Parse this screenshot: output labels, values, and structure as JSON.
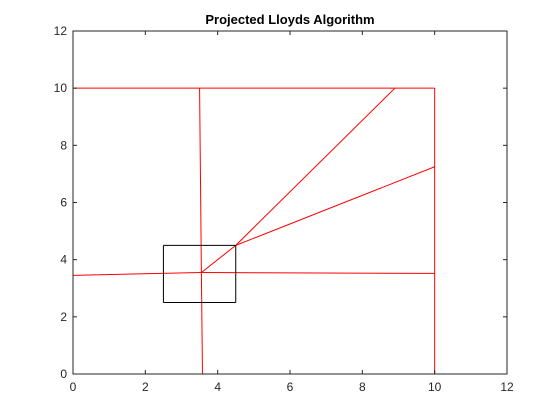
{
  "chart_data": {
    "type": "line",
    "title": "Projected Lloyds Algorithm",
    "xlabel": "",
    "ylabel": "",
    "xlim": [
      0,
      12
    ],
    "ylim": [
      0,
      12
    ],
    "xticks": [
      0,
      2,
      4,
      6,
      8,
      10,
      12
    ],
    "yticks": [
      0,
      2,
      4,
      6,
      8,
      10,
      12
    ],
    "grid": false,
    "box": true,
    "series": [
      {
        "color": "#ff0000",
        "segments": [
          [
            [
              0,
              0
            ],
            [
              0,
              10
            ]
          ],
          [
            [
              0,
              10
            ],
            [
              10,
              10
            ]
          ],
          [
            [
              10,
              10
            ],
            [
              10,
              0
            ]
          ],
          [
            [
              10,
              0
            ],
            [
              0,
              0
            ]
          ],
          [
            [
              3.5,
              10
            ],
            [
              3.55,
              3.55
            ]
          ],
          [
            [
              0,
              3.45
            ],
            [
              3.55,
              3.55
            ]
          ],
          [
            [
              3.55,
              3.55
            ],
            [
              3.58,
              0
            ]
          ],
          [
            [
              3.55,
              3.55
            ],
            [
              10,
              3.52
            ]
          ],
          [
            [
              3.55,
              3.55
            ],
            [
              4.5,
              4.5
            ]
          ],
          [
            [
              4.5,
              4.5
            ],
            [
              8.9,
              10
            ]
          ],
          [
            [
              4.5,
              4.5
            ],
            [
              10,
              7.25
            ]
          ]
        ]
      },
      {
        "color": "#000000",
        "segments": [
          [
            [
              2.5,
              2.5
            ],
            [
              4.5,
              2.5
            ]
          ],
          [
            [
              4.5,
              2.5
            ],
            [
              4.5,
              4.5
            ]
          ],
          [
            [
              4.5,
              4.5
            ],
            [
              2.5,
              4.5
            ]
          ],
          [
            [
              2.5,
              4.5
            ],
            [
              2.5,
              2.5
            ]
          ]
        ]
      }
    ]
  }
}
